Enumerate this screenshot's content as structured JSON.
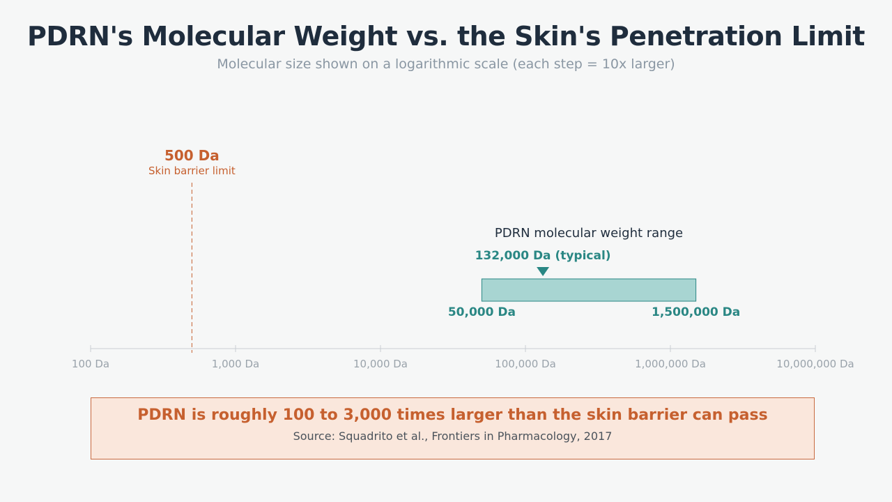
{
  "header": {
    "title": "PDRN's Molecular Weight vs. the Skin's Penetration Limit",
    "subtitle": "Molecular size shown on a logarithmic scale (each step = 10x larger)"
  },
  "chart_data": {
    "type": "range-on-log-axis",
    "x_scale": "log10",
    "xlim": [
      100,
      10000000
    ],
    "ticks": [
      {
        "value": 100,
        "label": "100 Da"
      },
      {
        "value": 1000,
        "label": "1,000 Da"
      },
      {
        "value": 10000,
        "label": "10,000 Da"
      },
      {
        "value": 100000,
        "label": "100,000 Da"
      },
      {
        "value": 1000000,
        "label": "1,000,000 Da"
      },
      {
        "value": 10000000,
        "label": "10,000,000 Da"
      }
    ],
    "threshold": {
      "value": 500,
      "value_label": "500 Da",
      "label": "Skin barrier limit"
    },
    "range": {
      "label": "PDRN molecular weight range",
      "min": 50000,
      "max": 1500000,
      "min_label": "50,000 Da",
      "max_label": "1,500,000 Da",
      "typical": 132000,
      "typical_label": "132,000 Da (typical)"
    }
  },
  "callout": {
    "headline": "PDRN is roughly 100 to 3,000 times larger than the skin barrier can pass",
    "source": "Source: Squadrito et al., Frontiers in Pharmacology, 2017"
  },
  "colors": {
    "threshold": "#c6602f",
    "range_fill": "#a8d5d2",
    "range_stroke": "#2a8784",
    "range_text": "#2a8784",
    "axis": "#c9ced3",
    "tick_label": "#9aa3ab"
  }
}
